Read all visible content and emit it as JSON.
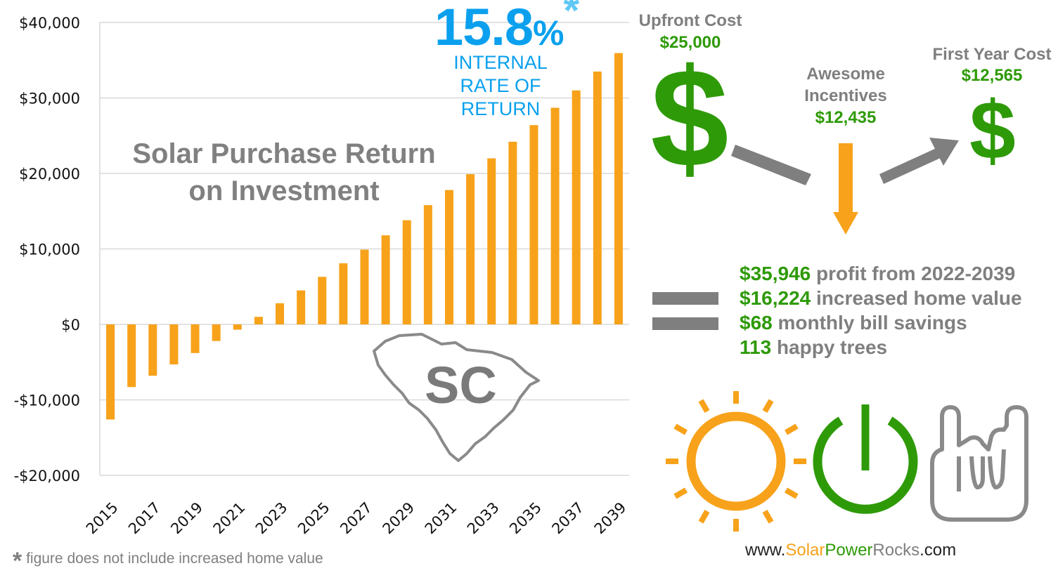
{
  "chart_data": {
    "type": "bar",
    "title": "Solar Purchase Return on Investment",
    "title_lines": [
      "Solar Purchase Return",
      "on Investment"
    ],
    "x": [
      2015,
      2016,
      2017,
      2018,
      2019,
      2020,
      2021,
      2022,
      2023,
      2024,
      2025,
      2026,
      2027,
      2028,
      2029,
      2030,
      2031,
      2032,
      2033,
      2034,
      2035,
      2036,
      2037,
      2038,
      2039
    ],
    "x_tick_labels": [
      "2015",
      "2017",
      "2019",
      "2021",
      "2023",
      "2025",
      "2027",
      "2029",
      "2031",
      "2033",
      "2035",
      "2037",
      "2039"
    ],
    "values": [
      -12600,
      -8300,
      -6800,
      -5300,
      -3800,
      -2200,
      -700,
      1000,
      2800,
      4500,
      6300,
      8100,
      9900,
      11800,
      13800,
      15800,
      17800,
      19900,
      22000,
      24200,
      26400,
      28700,
      31000,
      33500,
      35946
    ],
    "ylim": [
      -20000,
      40000
    ],
    "y_tick_labels": [
      "$40,000",
      "$30,000",
      "$20,000",
      "$10,000",
      "$0",
      "-$10,000",
      "-$20,000"
    ],
    "y_tick_values": [
      40000,
      30000,
      20000,
      10000,
      0,
      -10000,
      -20000
    ],
    "bar_color": "#f7a21a",
    "grid": true
  },
  "irr": {
    "value": "15.8",
    "percent": "%",
    "asterisk": "*",
    "label_lines": [
      "INTERNAL",
      "RATE OF",
      "RETURN"
    ]
  },
  "state": {
    "abbr": "SC"
  },
  "costs": {
    "upfront_label": "Upfront Cost",
    "upfront_value": "$25,000",
    "incentives_label_lines": [
      "Awesome",
      "Incentives"
    ],
    "incentives_value": "$12,435",
    "first_year_label": "First Year Cost",
    "first_year_value": "$12,565",
    "dollar_symbol": "$"
  },
  "summary": [
    {
      "num": "$35,946",
      "text": " profit from 2022-2039"
    },
    {
      "num": "$16,224",
      "text": " increased home value"
    },
    {
      "num": "$68",
      "text": " monthly bill savings"
    },
    {
      "num": "113",
      "text": " happy trees"
    }
  ],
  "footnote": {
    "star": "*",
    "text": "figure does not include increased home value"
  },
  "url": {
    "prefix": "www.",
    "solar": "Solar",
    "power": "Power",
    "rocks": "Rocks",
    "suffix": ".com"
  },
  "colors": {
    "orange": "#f7a21a",
    "green": "#2e9a08",
    "grey": "#808080",
    "blue": "#0aa0ee"
  },
  "icons": [
    "sun-icon",
    "power-icon",
    "rock-hand-icon",
    "south-carolina-outline-icon"
  ]
}
